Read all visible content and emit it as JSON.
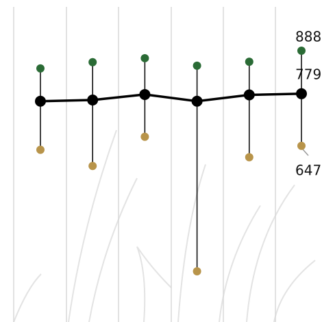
{
  "chart_data": {
    "type": "line-range",
    "categories": [
      null,
      null,
      null,
      null,
      null,
      null
    ],
    "series": [
      {
        "color": "#2a6b35",
        "values": [
          843,
          859,
          869,
          850,
          860,
          888
        ]
      },
      {
        "color": "#000000",
        "values": [
          760,
          763,
          777,
          760,
          776,
          779
        ]
      },
      {
        "color": "#b8944a",
        "values": [
          637,
          596,
          670,
          329,
          618,
          647
        ]
      }
    ]
  }
}
